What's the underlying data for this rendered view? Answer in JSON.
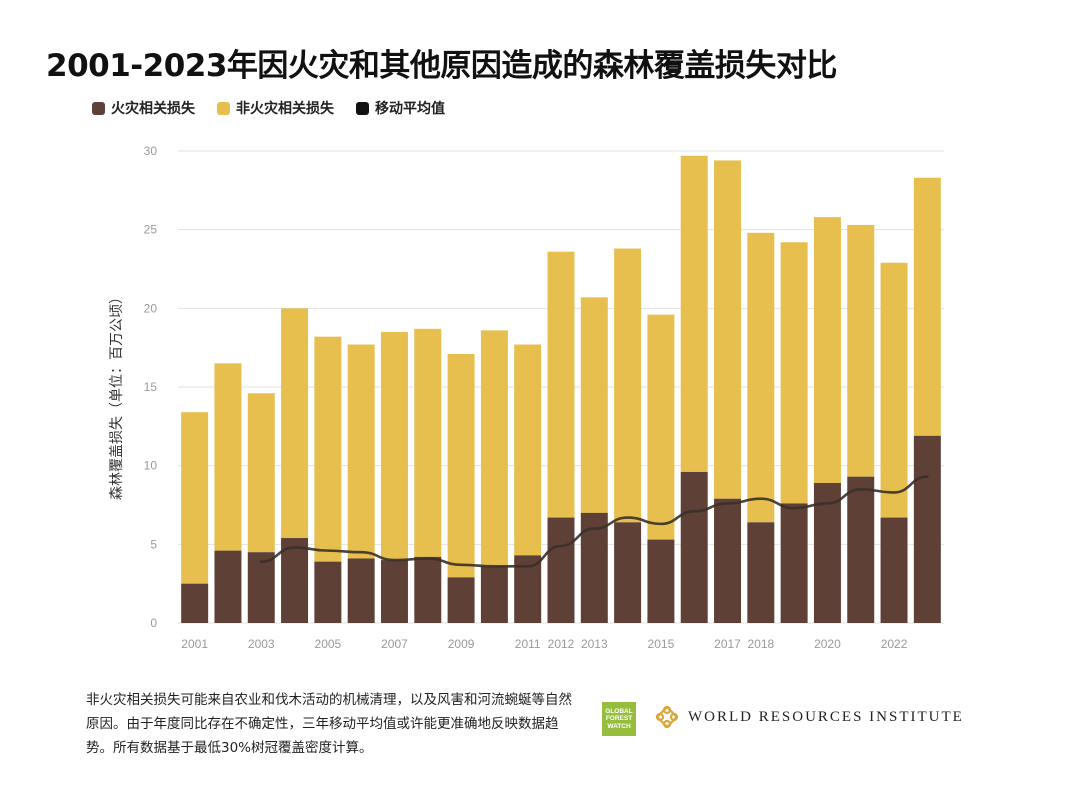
{
  "title": "2001-2023年因火灾和其他原因造成的森林覆盖损失对比",
  "legend": {
    "fire": "火灾相关损失",
    "nonfire": "非火灾相关损失",
    "avg": "移动平均值"
  },
  "colors": {
    "fire": "#5e4037",
    "nonfire": "#e6bf4e",
    "avg": "#3a302a",
    "grid": "#e2e2e2"
  },
  "footnote": "非火灾相关损失可能来自农业和伐木活动的机械清理，以及风害和河流蜿蜒等自然原因。由于年度同比存在不确定性，三年移动平均值或许能更准确地反映数据趋势。所有数据基于最低30%树冠覆盖密度计算。",
  "logos": {
    "gfw_line1": "GLOBAL",
    "gfw_line2": "FOREST",
    "gfw_line3": "WATCH",
    "wri": "WORLD RESOURCES INSTITUTE",
    "wri_icon": "wri-knot-icon"
  },
  "chart_data": {
    "type": "bar",
    "stacked": true,
    "title": "2001-2023年因火灾和其他原因造成的森林覆盖损失对比",
    "ylabel": "森林覆盖损失（单位：百万公顷）",
    "ylim": [
      0,
      30
    ],
    "yticks": [
      0,
      5,
      10,
      15,
      20,
      25,
      30
    ],
    "grid": true,
    "legend_position": "top-left",
    "categories": [
      2001,
      2002,
      2003,
      2004,
      2005,
      2006,
      2007,
      2008,
      2009,
      2010,
      2011,
      2012,
      2013,
      2014,
      2015,
      2016,
      2017,
      2018,
      2019,
      2020,
      2021,
      2022,
      2023
    ],
    "xtick_labels": [
      "2001",
      "",
      "2003",
      "",
      "2005",
      "",
      "2007",
      "",
      "2009",
      "",
      "2011",
      "2012",
      "2013",
      "",
      "2015",
      "",
      "2017",
      "2018",
      "",
      "2020",
      "",
      "2022",
      ""
    ],
    "series": [
      {
        "name": "火灾相关损失",
        "values": [
          2.5,
          4.6,
          4.5,
          5.4,
          3.9,
          4.1,
          4.0,
          4.2,
          2.9,
          3.6,
          4.3,
          6.7,
          7.0,
          6.4,
          5.3,
          9.6,
          7.9,
          6.4,
          7.6,
          8.9,
          9.3,
          6.7,
          11.9
        ]
      },
      {
        "name": "非火灾相关损失",
        "values": [
          10.9,
          11.9,
          10.1,
          14.6,
          14.3,
          13.6,
          14.5,
          14.5,
          14.2,
          15.0,
          13.4,
          16.9,
          13.7,
          17.4,
          14.3,
          20.1,
          21.5,
          18.4,
          16.6,
          16.9,
          16.0,
          16.2,
          16.4
        ]
      },
      {
        "name": "移动平均值",
        "type": "line",
        "x": [
          2003,
          2004,
          2005,
          2006,
          2007,
          2008,
          2009,
          2010,
          2011,
          2012,
          2013,
          2014,
          2015,
          2016,
          2017,
          2018,
          2019,
          2020,
          2021,
          2022,
          2023
        ],
        "values": [
          3.9,
          4.8,
          4.6,
          4.5,
          4.0,
          4.1,
          3.7,
          3.6,
          3.6,
          4.9,
          6.0,
          6.7,
          6.3,
          7.1,
          7.6,
          7.9,
          7.3,
          7.6,
          8.5,
          8.3,
          9.3
        ]
      }
    ]
  }
}
